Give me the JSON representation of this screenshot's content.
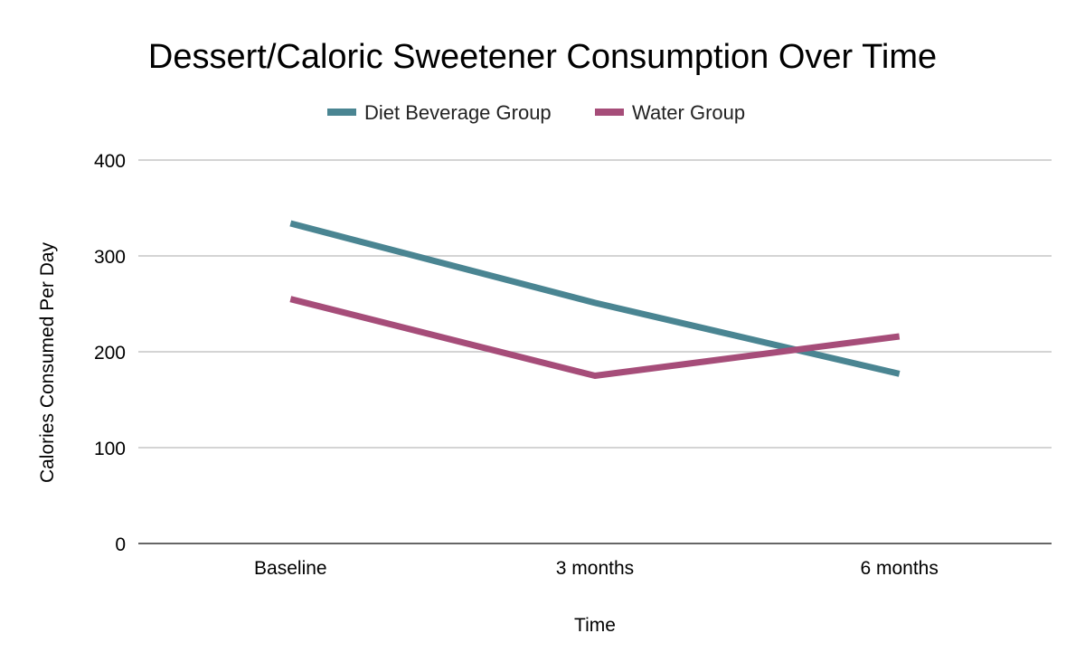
{
  "chart_data": {
    "type": "line",
    "title": "Dessert/Caloric Sweetener Consumption Over Time",
    "xlabel": "Time",
    "ylabel": "Calories Consumed Per Day",
    "categories": [
      "Baseline",
      "3 months",
      "6 months"
    ],
    "ylim": [
      0,
      400
    ],
    "yticks": [
      0,
      100,
      200,
      300,
      400
    ],
    "grid": true,
    "legend_position": "top-center",
    "series": [
      {
        "name": "Diet Beverage Group",
        "color": "#4a8592",
        "values": [
          334,
          251,
          177
        ]
      },
      {
        "name": "Water Group",
        "color": "#a64d79",
        "values": [
          255,
          175,
          216
        ]
      }
    ]
  }
}
